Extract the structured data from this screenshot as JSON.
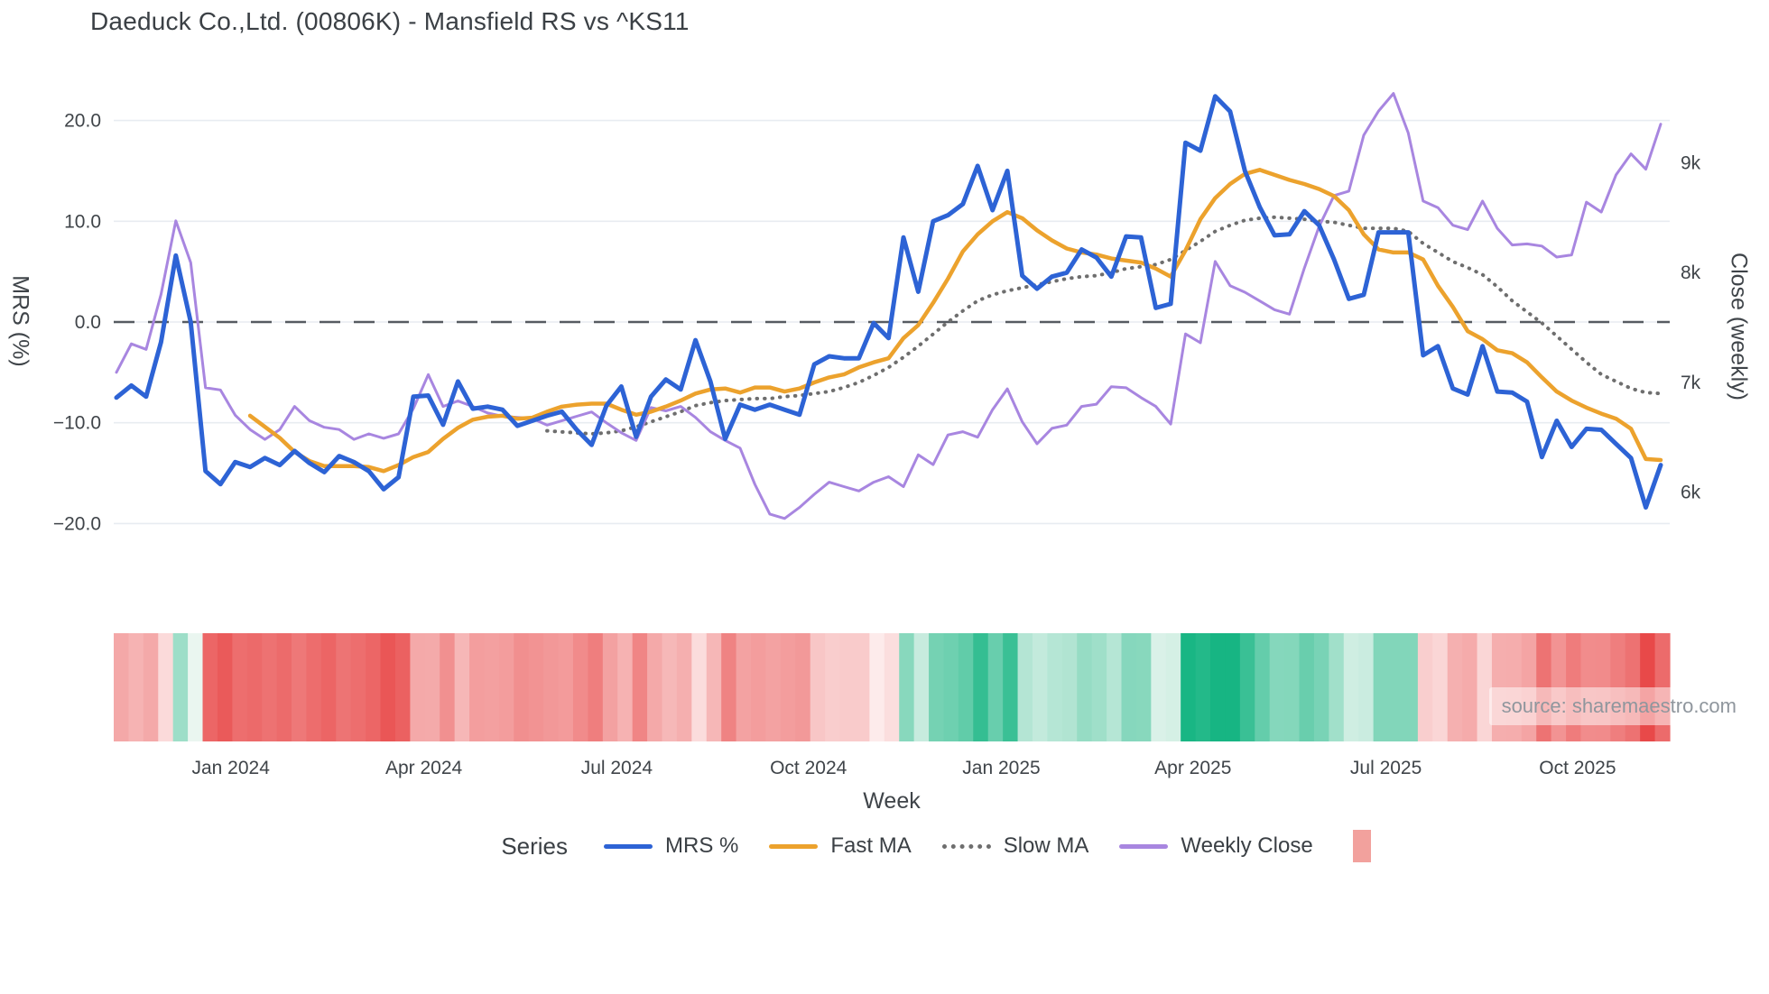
{
  "title": "Daeduck Co.,Ltd. (00806K) - Mansfield RS vs ^KS11",
  "watermark": "source: sharemaestro.com",
  "axes": {
    "left_label": "MRS (%)",
    "right_label": "Close (weekly)",
    "x_label": "Week"
  },
  "legend": {
    "series_label": "Series",
    "items": [
      {
        "label": "MRS %",
        "color": "#2d63d5",
        "style": "solid"
      },
      {
        "label": "Fast MA",
        "color": "#eca22d",
        "style": "solid"
      },
      {
        "label": "Slow MA",
        "color": "#6e6e6e",
        "style": "dotted"
      },
      {
        "label": "Weekly Close",
        "color": "#a886e0",
        "style": "solid"
      }
    ],
    "heat_swatch_color": "#f2a19d"
  },
  "colors": {
    "grid": "#e8ecf1",
    "zero_line": "#565b61",
    "text": "#3b4045",
    "tick_text": "#3f4449",
    "heat_negative": "#e84949",
    "heat_positive": "#17b583"
  },
  "chart_data": {
    "type": "line",
    "title": "Daeduck Co.,Ltd. (00806K) - Mansfield RS vs ^KS11",
    "xlabel": "Week",
    "n_weeks": 105,
    "x_ticks": [
      {
        "label": "Jan 2024",
        "week": 7.7
      },
      {
        "label": "Apr 2024",
        "week": 20.7
      },
      {
        "label": "Jul 2024",
        "week": 33.7
      },
      {
        "label": "Oct 2024",
        "week": 46.6
      },
      {
        "label": "Jan 2025",
        "week": 59.6
      },
      {
        "label": "Apr 2025",
        "week": 72.5
      },
      {
        "label": "Jul 2025",
        "week": 85.5
      },
      {
        "label": "Oct 2025",
        "week": 98.4
      }
    ],
    "y_left": {
      "label": "MRS (%)",
      "range": [
        -22,
        24
      ],
      "zero_dashed_line": true,
      "ticks": [
        {
          "label": "20.0",
          "value": 20
        },
        {
          "label": "10.0",
          "value": 10
        },
        {
          "label": "0.0",
          "value": 0
        },
        {
          "label": "−10.0",
          "value": -10
        },
        {
          "label": "−20.0",
          "value": -20
        }
      ]
    },
    "y_right": {
      "label": "Close (weekly)",
      "unit": "k",
      "ticks": [
        {
          "label": "9k",
          "value": 9
        },
        {
          "label": "8k",
          "value": 8
        },
        {
          "label": "7k",
          "value": 7
        },
        {
          "label": "6k",
          "value": 6
        }
      ]
    },
    "series": [
      {
        "name": "MRS %",
        "axis": "left",
        "style": "solid",
        "color": "#2d63d5",
        "width": 5,
        "values": [
          -7.5,
          -6.3,
          -7.4,
          -2.0,
          6.6,
          0.0,
          -14.8,
          -16.1,
          -13.9,
          -14.4,
          -13.5,
          -14.2,
          -12.8,
          -14.0,
          -14.9,
          -13.3,
          -13.9,
          -14.8,
          -16.6,
          -15.4,
          -7.4,
          -7.3,
          -10.2,
          -5.9,
          -8.6,
          -8.4,
          -8.7,
          -10.3,
          -9.8,
          -9.3,
          -8.9,
          -10.7,
          -12.2,
          -8.3,
          -6.4,
          -11.4,
          -7.4,
          -5.7,
          -6.7,
          -1.8,
          -5.9,
          -11.6,
          -8.2,
          -8.7,
          -8.2,
          -8.7,
          -9.2,
          -4.2,
          -3.4,
          -3.6,
          -3.6,
          -0.1,
          -1.6,
          8.4,
          3.0,
          10.0,
          10.6,
          11.7,
          15.5,
          11.1,
          15.0,
          4.6,
          3.3,
          4.5,
          4.9,
          7.2,
          6.4,
          4.5,
          8.5,
          8.4,
          1.4,
          1.8,
          17.8,
          17.0,
          22.4,
          20.9,
          15.0,
          11.4,
          8.6,
          8.7,
          11.0,
          9.6,
          6.2,
          2.3,
          2.7,
          8.9,
          8.9,
          8.9,
          -3.3,
          -2.4,
          -6.6,
          -7.2,
          -2.4,
          -6.9,
          -7.0,
          -7.9,
          -13.4,
          -9.8,
          -12.4,
          -10.6,
          -10.7,
          -12.1,
          -13.5,
          -18.4,
          -14.2
        ]
      },
      {
        "name": "Fast MA",
        "axis": "left",
        "style": "solid",
        "color": "#eca22d",
        "width": 4.5,
        "values": [
          null,
          null,
          null,
          null,
          null,
          null,
          null,
          null,
          null,
          -9.3,
          -10.4,
          -11.5,
          -12.9,
          -13.8,
          -14.3,
          -14.3,
          -14.3,
          -14.4,
          -14.8,
          -14.2,
          -13.4,
          -12.9,
          -11.6,
          -10.5,
          -9.7,
          -9.4,
          -9.3,
          -9.6,
          -9.5,
          -8.9,
          -8.4,
          -8.2,
          -8.1,
          -8.1,
          -8.7,
          -9.2,
          -8.9,
          -8.4,
          -7.8,
          -7.1,
          -6.7,
          -6.6,
          -7.0,
          -6.5,
          -6.5,
          -6.9,
          -6.6,
          -6.0,
          -5.5,
          -5.2,
          -4.5,
          -4.0,
          -3.6,
          -1.6,
          -0.3,
          1.9,
          4.3,
          7.0,
          8.7,
          10.0,
          10.9,
          10.3,
          9.1,
          8.1,
          7.3,
          6.9,
          6.7,
          6.3,
          6.1,
          5.9,
          5.3,
          4.5,
          7.1,
          10.2,
          12.3,
          13.7,
          14.7,
          15.1,
          14.6,
          14.1,
          13.7,
          13.2,
          12.5,
          11.1,
          8.7,
          7.2,
          6.9,
          6.9,
          6.2,
          3.6,
          1.5,
          -0.9,
          -1.7,
          -2.8,
          -3.1,
          -4.0,
          -5.5,
          -6.9,
          -7.8,
          -8.5,
          -9.1,
          -9.6,
          -10.6,
          -13.6,
          -13.7
        ]
      },
      {
        "name": "Slow MA",
        "axis": "left",
        "style": "dotted",
        "color": "#6e6e6e",
        "width": 4,
        "values": [
          null,
          null,
          null,
          null,
          null,
          null,
          null,
          null,
          null,
          null,
          null,
          null,
          null,
          null,
          null,
          null,
          null,
          null,
          null,
          null,
          null,
          null,
          null,
          null,
          null,
          null,
          null,
          null,
          null,
          -10.8,
          -10.9,
          -11.0,
          -11.1,
          -11.0,
          -10.8,
          -10.4,
          -9.9,
          -9.4,
          -8.9,
          -8.3,
          -8.0,
          -7.8,
          -7.7,
          -7.6,
          -7.6,
          -7.4,
          -7.3,
          -7.1,
          -6.9,
          -6.5,
          -6.0,
          -5.3,
          -4.5,
          -3.5,
          -2.4,
          -1.2,
          0.0,
          1.1,
          2.1,
          2.7,
          3.1,
          3.4,
          3.7,
          4.0,
          4.3,
          4.5,
          4.6,
          4.9,
          5.3,
          5.5,
          5.7,
          6.2,
          7.1,
          8.0,
          9.0,
          9.6,
          10.1,
          10.3,
          10.4,
          10.3,
          10.2,
          10.0,
          9.9,
          9.6,
          9.3,
          9.3,
          9.3,
          9.0,
          7.8,
          6.9,
          6.0,
          5.4,
          4.7,
          3.5,
          2.1,
          1.0,
          -0.1,
          -1.4,
          -2.7,
          -4.0,
          -5.2,
          -5.9,
          -6.6,
          -7.0,
          -7.1
        ]
      },
      {
        "name": "Weekly Close",
        "axis": "right",
        "style": "solid",
        "color": "#a886e0",
        "width": 3,
        "values": [
          7.09,
          7.35,
          7.3,
          7.8,
          8.47,
          8.09,
          6.95,
          6.93,
          6.7,
          6.57,
          6.48,
          6.57,
          6.78,
          6.65,
          6.59,
          6.57,
          6.48,
          6.53,
          6.49,
          6.53,
          6.76,
          7.07,
          6.78,
          6.83,
          6.78,
          6.72,
          6.69,
          6.68,
          6.67,
          6.61,
          6.65,
          6.69,
          6.73,
          6.63,
          6.54,
          6.47,
          6.77,
          6.74,
          6.78,
          6.68,
          6.55,
          6.47,
          6.4,
          6.07,
          5.8,
          5.76,
          5.86,
          5.98,
          6.09,
          6.05,
          6.01,
          6.09,
          6.14,
          6.05,
          6.34,
          6.25,
          6.52,
          6.55,
          6.5,
          6.75,
          6.94,
          6.64,
          6.44,
          6.58,
          6.61,
          6.78,
          6.8,
          6.96,
          6.95,
          6.86,
          6.78,
          6.62,
          7.44,
          7.36,
          8.1,
          7.88,
          7.82,
          7.74,
          7.66,
          7.62,
          8.04,
          8.42,
          8.7,
          8.74,
          9.25,
          9.47,
          9.63,
          9.27,
          8.65,
          8.59,
          8.43,
          8.39,
          8.65,
          8.4,
          8.25,
          8.26,
          8.24,
          8.14,
          8.16,
          8.64,
          8.55,
          8.89,
          9.08,
          8.94,
          9.35
        ]
      }
    ],
    "heatmap": {
      "source_series": "MRS %",
      "negative_color": "#e84949",
      "negative_light": "#fdecec",
      "positive_color": "#17b583",
      "positive_light": "#eaf6f0",
      "scale_max": 18
    }
  }
}
